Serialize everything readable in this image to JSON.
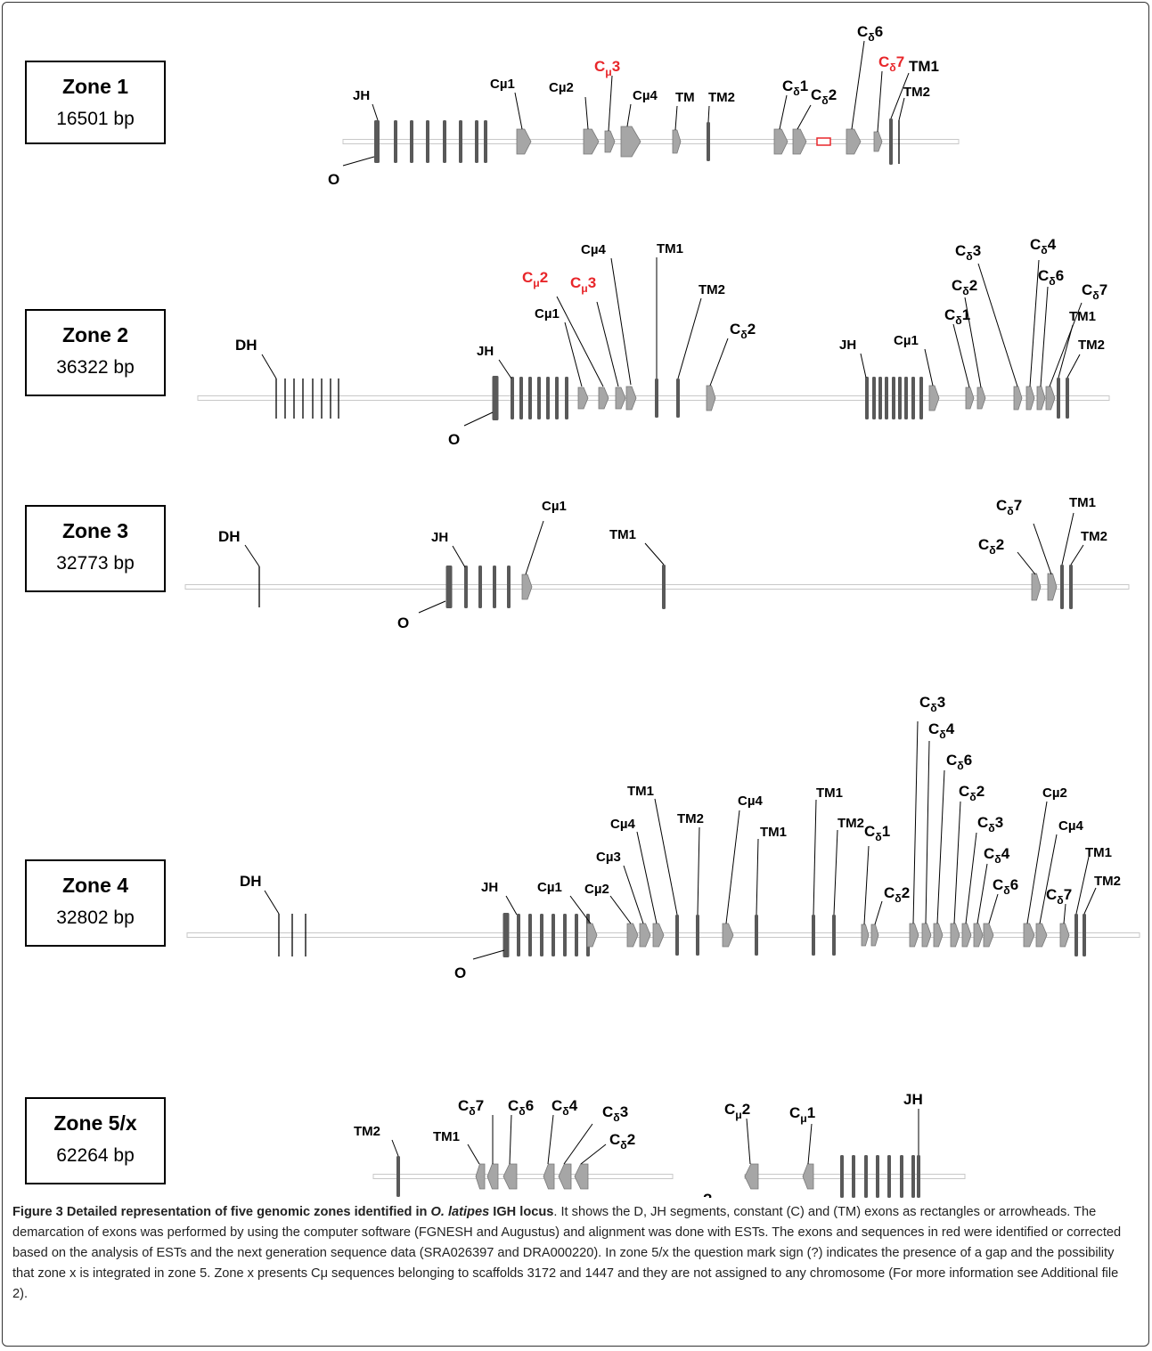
{
  "zones": [
    {
      "name": "Zone 1",
      "length": "16501 bp"
    },
    {
      "name": "Zone 2",
      "length": "36322 bp"
    },
    {
      "name": "Zone 3",
      "length": "32773 bp"
    },
    {
      "name": "Zone 4",
      "length": "32802 bp"
    },
    {
      "name": "Zone 5/x",
      "length": "62264 bp"
    }
  ],
  "colors": {
    "line": "#000000",
    "backbone": "#d9d9d9",
    "exon": "#595959",
    "arrow": "#a6a6a6",
    "highlight": "#e8262a"
  },
  "gap_mark": "?",
  "caption": {
    "title_start": "Figure 3 Detailed representation of five genomic zones identified in ",
    "title_species": "O. latipes",
    "title_end": " IGH locus",
    "text": ". It shows the D, JH segments, constant (C) and (TM) exons as rectangles or arrowheads. The demarcation of exons was performed by using the computer software (FGNESH and Augustus) and alignment was done with ESTs. The exons and sequences in red were identified or corrected based on the analysis of ESTs and the next generation sequence data (SRA026397 and DRA000220). In zone 5/x the question mark sign (?) indicates the presence of a gap and the possibility that zone x is integrated in zone 5. Zone x presents Cμ sequences belonging to scaffolds 3172 and 1447 and they are not assigned to any chromosome (For more information see Additional file 2)."
  }
}
